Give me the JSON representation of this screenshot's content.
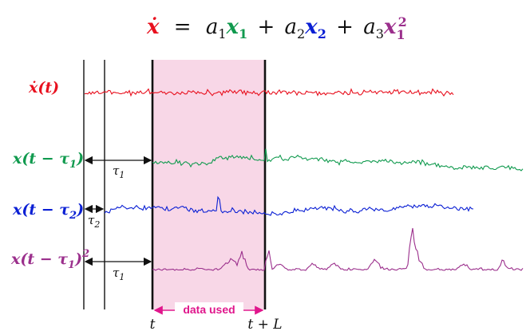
{
  "colors": {
    "red": "#e8101e",
    "green": "#109a4e",
    "blue": "#0a1fd4",
    "purple": "#9b2f8c",
    "magenta": "#e0168c",
    "shade": "#f8d7e7",
    "ink": "#111111"
  },
  "equation": {
    "lhs": "ẋ",
    "equals": "=",
    "a1": "a",
    "a1_sub": "1",
    "x1": "x",
    "x1_sub": "1",
    "plus1": "+",
    "a2": "a",
    "a2_sub": "2",
    "x2": "x",
    "x2_sub": "2",
    "plus2": "+",
    "a3": "a",
    "a3_sub": "3",
    "x3": "x",
    "x3_sub": "1",
    "x3_sup": "2"
  },
  "rows": {
    "xdot": {
      "label": "ẋ(t)"
    },
    "lag1": {
      "label": "x(t − τ",
      "label_sub": "1",
      "label_close": ")"
    },
    "lag2": {
      "label": "x(t − τ",
      "label_sub": "2",
      "label_close": ")"
    },
    "lag1sq": {
      "label": "x(t − τ",
      "label_sub": "1",
      "label_close": ")",
      "label_sup": "2"
    }
  },
  "lags": {
    "tau1": {
      "symbol": "τ",
      "sub": "1"
    },
    "tau2": {
      "symbol": "τ",
      "sub": "2"
    },
    "tau1b": {
      "symbol": "τ",
      "sub": "1"
    }
  },
  "window": {
    "label": "data used",
    "start_label": "t",
    "end_label": "t + L"
  }
}
